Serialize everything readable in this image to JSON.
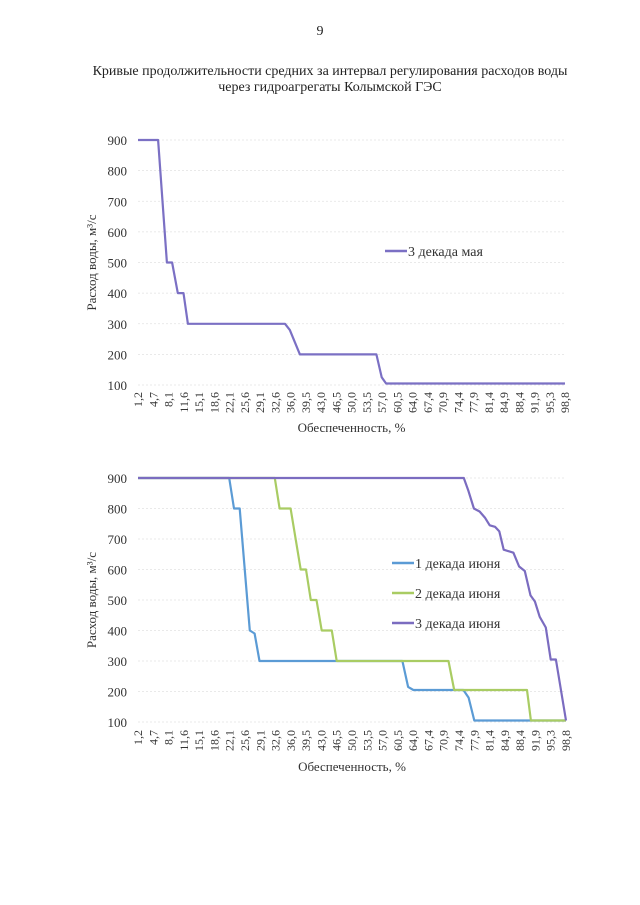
{
  "page_number": "9",
  "title_line1": "Кривые продолжительности средних за интервал регулирования расходов воды",
  "title_line2": "через гидроагрегаты Колымской ГЭС",
  "chart_data": [
    {
      "type": "line",
      "xlabel": "Обеспеченность, %",
      "ylabel": "Расход воды, м³/с",
      "ylim": [
        100,
        900
      ],
      "yticks": [
        "100",
        "200",
        "300",
        "400",
        "500",
        "600",
        "700",
        "800",
        "900"
      ],
      "xticks": [
        "1,2",
        "4,7",
        "8,1",
        "11,6",
        "15,1",
        "18,6",
        "22,1",
        "25,6",
        "29,1",
        "32,6",
        "36,0",
        "39,5",
        "43,0",
        "46,5",
        "50,0",
        "53,5",
        "57,0",
        "60,5",
        "64,0",
        "67,4",
        "70,9",
        "74,4",
        "77,9",
        "81,4",
        "84,9",
        "88,4",
        "91,9",
        "95,3",
        "98,8"
      ],
      "xlim": [
        1.2,
        98.8
      ],
      "grid": true,
      "legend": "right",
      "series": [
        {
          "name": "3 декада мая",
          "color": "#7b70c4",
          "points": [
            [
              1.2,
              900
            ],
            [
              5.8,
              900
            ],
            [
              7.8,
              500
            ],
            [
              9.0,
              500
            ],
            [
              10.3,
              400
            ],
            [
              11.6,
              400
            ],
            [
              12.6,
              300
            ],
            [
              34.8,
              300
            ],
            [
              35.9,
              280
            ],
            [
              38.2,
              200
            ],
            [
              55.7,
              200
            ],
            [
              56.9,
              125
            ],
            [
              57.9,
              105
            ],
            [
              98.8,
              105
            ]
          ]
        }
      ]
    },
    {
      "type": "line",
      "xlabel": "Обеспеченность, %",
      "ylabel": "Расход воды, м³/с",
      "ylim": [
        100,
        900
      ],
      "yticks": [
        "100",
        "200",
        "300",
        "400",
        "500",
        "600",
        "700",
        "800",
        "900"
      ],
      "xticks": [
        "1,2",
        "4,7",
        "8,1",
        "11,6",
        "15,1",
        "18,6",
        "22,1",
        "25,6",
        "29,1",
        "32,6",
        "36,0",
        "39,5",
        "43,0",
        "46,5",
        "50,0",
        "53,5",
        "57,0",
        "60,5",
        "64,0",
        "67,4",
        "70,9",
        "74,4",
        "77,9",
        "81,4",
        "84,9",
        "88,4",
        "91,9",
        "95,3",
        "98,8"
      ],
      "xlim": [
        1.2,
        98.8
      ],
      "grid": true,
      "legend": "right",
      "series": [
        {
          "name": "1 декада июня",
          "color": "#5b9bd5",
          "points": [
            [
              1.2,
              900
            ],
            [
              22.0,
              900
            ],
            [
              23.1,
              800
            ],
            [
              24.4,
              800
            ],
            [
              26.7,
              400
            ],
            [
              27.8,
              390
            ],
            [
              28.9,
              300
            ],
            [
              61.5,
              300
            ],
            [
              62.8,
              215
            ],
            [
              64.0,
              205
            ],
            [
              75.4,
              205
            ],
            [
              76.6,
              180
            ],
            [
              77.9,
              105
            ],
            [
              98.8,
              105
            ]
          ]
        },
        {
          "name": "2 декада июня",
          "color": "#a9cc63",
          "points": [
            [
              1.2,
              900
            ],
            [
              32.4,
              900
            ],
            [
              33.5,
              800
            ],
            [
              36.0,
              800
            ],
            [
              38.3,
              600
            ],
            [
              39.5,
              600
            ],
            [
              40.6,
              500
            ],
            [
              41.9,
              500
            ],
            [
              43.1,
              400
            ],
            [
              45.4,
              400
            ],
            [
              46.5,
              300
            ],
            [
              72.0,
              300
            ],
            [
              73.3,
              205
            ],
            [
              89.9,
              205
            ],
            [
              90.8,
              105
            ],
            [
              98.8,
              105
            ]
          ]
        },
        {
          "name": "3 декада июня",
          "color": "#7b6cc0",
          "points": [
            [
              1.2,
              900
            ],
            [
              75.5,
              900
            ],
            [
              76.5,
              860
            ],
            [
              77.8,
              800
            ],
            [
              79.1,
              790
            ],
            [
              80.3,
              770
            ],
            [
              81.4,
              745
            ],
            [
              82.6,
              740
            ],
            [
              83.6,
              725
            ],
            [
              84.6,
              665
            ],
            [
              86.8,
              655
            ],
            [
              88.1,
              610
            ],
            [
              89.4,
              595
            ],
            [
              90.7,
              515
            ],
            [
              91.7,
              495
            ],
            [
              92.8,
              445
            ],
            [
              94.2,
              410
            ],
            [
              95.3,
              305
            ],
            [
              96.5,
              305
            ],
            [
              98.8,
              105
            ]
          ]
        }
      ]
    }
  ]
}
